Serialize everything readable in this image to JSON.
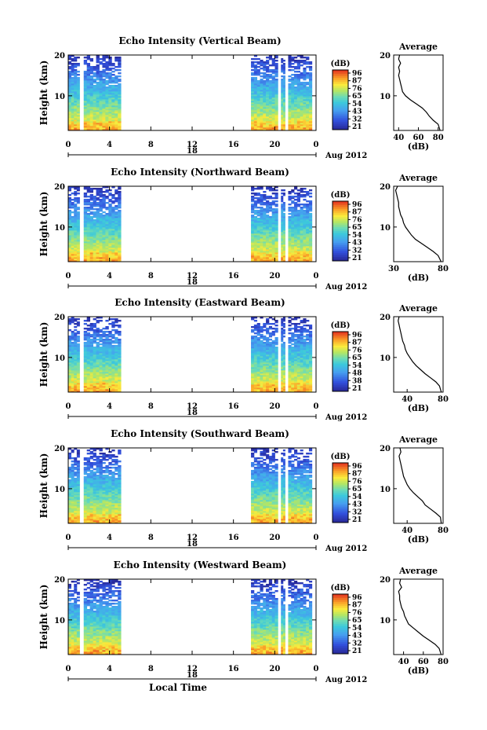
{
  "figure": {
    "xlabel": "Local Time",
    "date_label": "Aug 2012",
    "day_label": "18",
    "colorbar_unit": "(dB)",
    "avg_title": "Average",
    "avg_xlabel": "(dB)"
  },
  "chart_data": [
    {
      "type": "heatmap",
      "title": "Echo Intensity (Vertical Beam)",
      "ylabel": "Height (km)",
      "x_ticks": [
        "0",
        "4",
        "8",
        "12",
        "16",
        "20",
        "0"
      ],
      "y_ticks": [
        "20",
        "10"
      ],
      "xlim": [
        0,
        24
      ],
      "ylim": [
        1.5,
        20
      ],
      "data_time_ranges": [
        [
          0,
          1.1
        ],
        [
          1.5,
          5.1
        ],
        [
          17.7,
          20.3
        ],
        [
          20.6,
          21.0
        ],
        [
          21.3,
          23.6
        ]
      ],
      "colorbar_ticks": [
        "96",
        "87",
        "76",
        "65",
        "54",
        "43",
        "32",
        "21"
      ],
      "average": {
        "x_ticks": [
          "40",
          "60",
          "80"
        ],
        "xlim": [
          35,
          85
        ],
        "profile": [
          [
            1.5,
            82
          ],
          [
            3,
            80
          ],
          [
            4,
            75
          ],
          [
            5,
            71
          ],
          [
            6,
            68
          ],
          [
            7,
            64
          ],
          [
            8,
            58
          ],
          [
            9,
            52
          ],
          [
            10,
            47
          ],
          [
            11,
            44
          ],
          [
            12,
            43
          ],
          [
            13,
            42
          ],
          [
            14,
            41
          ],
          [
            15,
            40
          ],
          [
            16,
            41
          ],
          [
            17,
            40
          ],
          [
            18,
            42
          ],
          [
            19,
            40
          ],
          [
            20,
            41
          ]
        ]
      }
    },
    {
      "type": "heatmap",
      "title": "Echo Intensity (Northward Beam)",
      "ylabel": "Height (km)",
      "x_ticks": [
        "0",
        "4",
        "8",
        "12",
        "16",
        "20",
        "0"
      ],
      "y_ticks": [
        "20",
        "10"
      ],
      "xlim": [
        0,
        24
      ],
      "ylim": [
        1.5,
        20
      ],
      "data_time_ranges": [
        [
          0,
          1.1
        ],
        [
          1.5,
          5.1
        ],
        [
          17.7,
          20.3
        ],
        [
          20.6,
          21.0
        ],
        [
          21.3,
          23.6
        ]
      ],
      "colorbar_ticks": [
        "96",
        "87",
        "76",
        "65",
        "54",
        "43",
        "32",
        "21"
      ],
      "average": {
        "x_ticks": [
          "30",
          "80"
        ],
        "xlim": [
          30,
          80
        ],
        "profile": [
          [
            1.5,
            78
          ],
          [
            3,
            75
          ],
          [
            4,
            70
          ],
          [
            5,
            64
          ],
          [
            6,
            58
          ],
          [
            7,
            52
          ],
          [
            8,
            48
          ],
          [
            9,
            45
          ],
          [
            10,
            42
          ],
          [
            11,
            40
          ],
          [
            12,
            39
          ],
          [
            13,
            37
          ],
          [
            14,
            36
          ],
          [
            15,
            35
          ],
          [
            16,
            35
          ],
          [
            17,
            34
          ],
          [
            18,
            33
          ],
          [
            19,
            32
          ],
          [
            20,
            34
          ]
        ]
      }
    },
    {
      "type": "heatmap",
      "title": "Echo Intensity (Eastward Beam)",
      "ylabel": "Height (km)",
      "x_ticks": [
        "0",
        "4",
        "8",
        "12",
        "16",
        "20",
        "0"
      ],
      "y_ticks": [
        "20",
        "10"
      ],
      "xlim": [
        0,
        24
      ],
      "ylim": [
        1.5,
        20
      ],
      "data_time_ranges": [
        [
          0,
          1.1
        ],
        [
          1.5,
          5.1
        ],
        [
          17.7,
          20.3
        ],
        [
          20.6,
          21.0
        ],
        [
          21.3,
          23.6
        ]
      ],
      "colorbar_ticks": [
        "96",
        "87",
        "76",
        "65",
        "54",
        "48",
        "38",
        "21"
      ],
      "average": {
        "x_ticks": [
          "40",
          "80"
        ],
        "xlim": [
          25,
          80
        ],
        "profile": [
          [
            1.5,
            78
          ],
          [
            3,
            76
          ],
          [
            4,
            72
          ],
          [
            5,
            66
          ],
          [
            6,
            60
          ],
          [
            7,
            55
          ],
          [
            8,
            50
          ],
          [
            9,
            46
          ],
          [
            10,
            43
          ],
          [
            11,
            40
          ],
          [
            12,
            38
          ],
          [
            13,
            37
          ],
          [
            14,
            35
          ],
          [
            15,
            34
          ],
          [
            16,
            33
          ],
          [
            17,
            32
          ],
          [
            18,
            31
          ],
          [
            19,
            30
          ],
          [
            20,
            31
          ]
        ]
      }
    },
    {
      "type": "heatmap",
      "title": "Echo Intensity (Southward Beam)",
      "ylabel": "Height (km)",
      "x_ticks": [
        "0",
        "4",
        "8",
        "12",
        "16",
        "20",
        "0"
      ],
      "y_ticks": [
        "20",
        "10"
      ],
      "xlim": [
        0,
        24
      ],
      "ylim": [
        1.5,
        20
      ],
      "data_time_ranges": [
        [
          0,
          1.1
        ],
        [
          1.5,
          5.1
        ],
        [
          17.7,
          20.3
        ],
        [
          20.6,
          21.0
        ],
        [
          21.3,
          23.6
        ]
      ],
      "colorbar_ticks": [
        "96",
        "87",
        "76",
        "65",
        "54",
        "43",
        "32",
        "21"
      ],
      "average": {
        "x_ticks": [
          "40",
          "80"
        ],
        "xlim": [
          25,
          80
        ],
        "profile": [
          [
            1.5,
            78
          ],
          [
            3,
            77
          ],
          [
            4,
            72
          ],
          [
            5,
            66
          ],
          [
            6,
            60
          ],
          [
            7,
            57
          ],
          [
            8,
            52
          ],
          [
            9,
            47
          ],
          [
            10,
            43
          ],
          [
            11,
            40
          ],
          [
            12,
            38
          ],
          [
            13,
            36
          ],
          [
            14,
            35
          ],
          [
            15,
            34
          ],
          [
            16,
            33
          ],
          [
            17,
            32
          ],
          [
            18,
            31
          ],
          [
            19,
            33
          ],
          [
            20,
            32
          ]
        ]
      }
    },
    {
      "type": "heatmap",
      "title": "Echo Intensity (Westward Beam)",
      "ylabel": "Height (km)",
      "x_ticks": [
        "0",
        "4",
        "8",
        "12",
        "16",
        "20",
        "0"
      ],
      "y_ticks": [
        "20",
        "10"
      ],
      "xlim": [
        0,
        24
      ],
      "ylim": [
        1.5,
        20
      ],
      "data_time_ranges": [
        [
          0,
          1.1
        ],
        [
          1.5,
          5.1
        ],
        [
          17.7,
          20.3
        ],
        [
          20.6,
          21.0
        ],
        [
          21.3,
          23.6
        ]
      ],
      "colorbar_ticks": [
        "96",
        "87",
        "76",
        "65",
        "54",
        "43",
        "32",
        "21"
      ],
      "average": {
        "x_ticks": [
          "40",
          "60",
          "80"
        ],
        "xlim": [
          30,
          80
        ],
        "profile": [
          [
            1.5,
            78
          ],
          [
            3,
            76
          ],
          [
            4,
            72
          ],
          [
            5,
            66
          ],
          [
            6,
            60
          ],
          [
            7,
            55
          ],
          [
            8,
            50
          ],
          [
            9,
            45
          ],
          [
            10,
            43
          ],
          [
            11,
            41
          ],
          [
            12,
            40
          ],
          [
            13,
            38
          ],
          [
            14,
            37
          ],
          [
            15,
            36
          ],
          [
            16,
            36
          ],
          [
            17,
            35
          ],
          [
            18,
            38
          ],
          [
            19,
            36
          ],
          [
            20,
            37
          ]
        ]
      }
    }
  ]
}
